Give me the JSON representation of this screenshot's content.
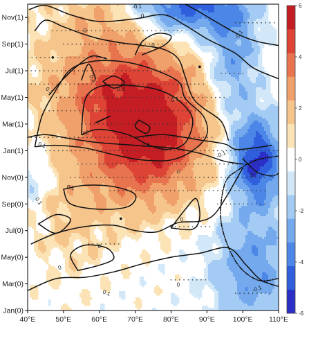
{
  "chart_data": {
    "type": "heatmap",
    "title": "",
    "xlabel": "",
    "ylabel": "",
    "x": {
      "range": [
        40,
        110
      ],
      "unit": "degrees east longitude",
      "ticks": [
        40,
        50,
        60,
        70,
        80,
        90,
        100,
        110
      ],
      "tick_labels": [
        "40°E",
        "50°E",
        "60°E",
        "70°E",
        "80°E",
        "90°E",
        "100°E",
        "110°E"
      ]
    },
    "y": {
      "range": [
        0,
        23
      ],
      "unit": "months from Jan(0) to Dec(1)",
      "ticks": [
        0,
        2,
        4,
        6,
        8,
        10,
        12,
        14,
        16,
        18,
        20,
        22
      ],
      "tick_labels": [
        "Jan(0)",
        "Mar(0)",
        "May(0)",
        "Jul(0)",
        "Sep(0)",
        "Nov(0)",
        "Jan(1)",
        "Mar(1)",
        "May(1)",
        "Jul(1)",
        "Sep(1)",
        "Nov(1)"
      ]
    },
    "colorbar": {
      "min": -6,
      "max": 6,
      "tick_values": [
        -6,
        -4,
        -2,
        0,
        2,
        4,
        6
      ],
      "tick_labels": [
        "-6",
        "-4",
        "-2",
        "0",
        "2",
        "4",
        "6"
      ],
      "levels": [
        -6,
        -5,
        -4,
        -3,
        -2,
        -1,
        -0.5,
        0.5,
        1,
        2,
        3,
        4,
        5,
        6
      ],
      "colors": [
        "#2b2fc6",
        "#2f5fdc",
        "#4c86e6",
        "#74a9ee",
        "#a3cbf3",
        "#d2e8f8",
        "#ffffff",
        "#fbe3b6",
        "#f6c58c",
        "#f0a06a",
        "#e8744f",
        "#dd4436",
        "#c41e24"
      ]
    },
    "field_centers": [
      {
        "name": "warm",
        "x": 72,
        "y": 14.5,
        "sx": 13,
        "sy": 3.4,
        "amp": 5.6
      },
      {
        "name": "warm",
        "x": 76,
        "y": 12.8,
        "sx": 6,
        "sy": 1.6,
        "amp": 1.2
      },
      {
        "name": "warm",
        "x": 58,
        "y": 18,
        "sx": 14,
        "sy": 3.5,
        "amp": 1.4
      },
      {
        "name": "warm",
        "x": 72,
        "y": 9.5,
        "sx": 12,
        "sy": 2.2,
        "amp": 1.3
      },
      {
        "name": "warm",
        "x": 52,
        "y": 6.5,
        "sx": 8,
        "sy": 3,
        "amp": 1.0
      },
      {
        "name": "warm",
        "x": 62,
        "y": 22.3,
        "sx": 9,
        "sy": 1.5,
        "amp": 1.2
      },
      {
        "name": "cool",
        "x": 104,
        "y": 11.3,
        "sx": 5,
        "sy": 2.3,
        "amp": -5.4
      },
      {
        "name": "cool",
        "x": 84,
        "y": 22.8,
        "sx": 11,
        "sy": 1.5,
        "amp": -4.4
      },
      {
        "name": "cool",
        "x": 97,
        "y": 18.7,
        "sx": 5,
        "sy": 3,
        "amp": -2.8
      },
      {
        "name": "cool",
        "x": 103,
        "y": 3,
        "sx": 8,
        "sy": 3,
        "amp": -2.8
      },
      {
        "name": "cool",
        "x": 42,
        "y": 10,
        "sx": 3,
        "sy": 1.5,
        "amp": -1.2
      }
    ],
    "contours": [
      {
        "level": 0,
        "style": "solid",
        "points": [
          [
            40.5,
            22.6
          ],
          [
            45,
            22.9
          ],
          [
            52,
            22.2
          ],
          [
            60,
            21.7
          ],
          [
            70,
            21.9
          ],
          [
            78,
            22.2
          ],
          [
            84,
            21.4
          ],
          [
            90,
            20.4
          ],
          [
            98,
            19.3
          ],
          [
            103,
            18.2
          ],
          [
            110,
            17.4
          ]
        ]
      },
      {
        "level": 0,
        "style": "solid",
        "points": [
          [
            42,
            21
          ],
          [
            45,
            21.8
          ],
          [
            50,
            21.3
          ],
          [
            55,
            20.8
          ],
          [
            60,
            20.4
          ],
          [
            66,
            20.1
          ],
          [
            72,
            19.9
          ],
          [
            78,
            19.6
          ],
          [
            82,
            18.9
          ],
          [
            84,
            17.5
          ],
          [
            86,
            16
          ],
          [
            89,
            15.2
          ],
          [
            94,
            14.2
          ],
          [
            96,
            12.8
          ]
        ]
      },
      {
        "level": 0,
        "style": "solid",
        "points": [
          [
            40,
            13
          ],
          [
            45,
            13.2
          ],
          [
            52,
            12.9
          ],
          [
            60,
            12.6
          ],
          [
            70,
            12.4
          ],
          [
            80,
            12.2
          ],
          [
            88,
            11.8
          ],
          [
            95,
            11.2
          ],
          [
            100,
            11
          ]
        ]
      },
      {
        "level": 0,
        "style": "solid",
        "points": [
          [
            40,
            1.5
          ],
          [
            48,
            2.4
          ],
          [
            56,
            2.5
          ],
          [
            64,
            2.9
          ],
          [
            72,
            3.5
          ],
          [
            80,
            4
          ],
          [
            88,
            4.3
          ],
          [
            96,
            4.7
          ],
          [
            101,
            3.4
          ],
          [
            105,
            2.3
          ],
          [
            110,
            1.8
          ]
        ]
      },
      {
        "level": 0,
        "style": "solid",
        "points": [
          [
            41,
            5
          ],
          [
            48,
            5.8
          ],
          [
            56,
            6.3
          ],
          [
            64,
            6.4
          ],
          [
            70,
            6
          ],
          [
            76,
            5.9
          ],
          [
            82,
            6.6
          ],
          [
            88,
            6.7
          ],
          [
            92,
            7.2
          ],
          [
            96,
            8.8
          ],
          [
            100,
            10.7
          ]
        ]
      },
      {
        "level": 0,
        "style": "solid",
        "points": [
          [
            54,
            3
          ],
          [
            52,
            4.2
          ],
          [
            56,
            4.9
          ],
          [
            62,
            4.7
          ],
          [
            64,
            3.9
          ],
          [
            60,
            3.4
          ],
          [
            54,
            3
          ]
        ]
      },
      {
        "level": -0.1,
        "style": "dashed",
        "points": [
          [
            110,
            2.4
          ],
          [
            104,
            2.3
          ],
          [
            98,
            3.7
          ],
          [
            94,
            6.6
          ],
          [
            95,
            9.5
          ],
          [
            99,
            10.6
          ],
          [
            104,
            11.3
          ],
          [
            110,
            11.6
          ]
        ]
      },
      {
        "level": -0.1,
        "style": "solid",
        "points": [
          [
            84,
            23
          ],
          [
            88,
            22.4
          ],
          [
            93,
            21.6
          ],
          [
            99,
            20.7
          ],
          [
            104,
            20.2
          ],
          [
            110,
            19.9
          ]
        ]
      },
      {
        "level": -0.2,
        "style": "dashed",
        "points": [
          [
            100,
            11.4
          ],
          [
            104,
            10.4
          ],
          [
            108,
            10.1
          ],
          [
            110,
            10.3
          ]
        ]
      },
      {
        "level": 0.1,
        "style": "solid",
        "points": [
          [
            42,
            12.3
          ],
          [
            48,
            12.4
          ],
          [
            56,
            12.2
          ],
          [
            64,
            11.7
          ],
          [
            72,
            11.3
          ],
          [
            80,
            11.3
          ],
          [
            86,
            12
          ],
          [
            90,
            13.2
          ],
          [
            89,
            14.6
          ],
          [
            84,
            15.9
          ],
          [
            82,
            17.2
          ],
          [
            74,
            18.2
          ],
          [
            66,
            18.7
          ],
          [
            58,
            18.7
          ],
          [
            52,
            18.1
          ],
          [
            48,
            16.6
          ],
          [
            44,
            14.6
          ],
          [
            42,
            12.3
          ]
        ]
      },
      {
        "level": 0.1,
        "style": "solid",
        "points": [
          [
            46,
            16.2
          ],
          [
            50,
            17.4
          ],
          [
            54,
            18.4
          ],
          [
            58,
            19.1
          ],
          [
            62,
            18.9
          ]
        ]
      },
      {
        "level": 0.1,
        "style": "solid",
        "points": [
          [
            70,
            19.2
          ],
          [
            72,
            20.2
          ],
          [
            76,
            20.8
          ],
          [
            80,
            20.6
          ],
          [
            78,
            19.9
          ],
          [
            72,
            19.2
          ]
        ]
      },
      {
        "level": 0.1,
        "style": "solid",
        "points": [
          [
            50,
            9.1
          ],
          [
            56,
            9.4
          ],
          [
            64,
            9.3
          ],
          [
            70,
            8.7
          ],
          [
            68,
            7.8
          ],
          [
            60,
            7.6
          ],
          [
            52,
            8
          ],
          [
            50,
            9.1
          ]
        ]
      },
      {
        "level": 0.1,
        "style": "solid",
        "points": [
          [
            43,
            6.5
          ],
          [
            48,
            7.2
          ],
          [
            52,
            6.8
          ],
          [
            48,
            5.8
          ],
          [
            43,
            6.5
          ]
        ]
      },
      {
        "level": 0.1,
        "style": "solid",
        "points": [
          [
            80,
            6.2
          ],
          [
            84,
            7.6
          ],
          [
            87,
            8.4
          ],
          [
            88,
            7
          ],
          [
            86,
            6.1
          ],
          [
            80,
            6.2
          ]
        ]
      },
      {
        "level": 0.1,
        "style": "solid",
        "points": [
          [
            70,
            13
          ],
          [
            78,
            13.2
          ],
          [
            88,
            12.8
          ],
          [
            95,
            12.5
          ],
          [
            98,
            12.1
          ],
          [
            103,
            12.2
          ],
          [
            108,
            12.4
          ]
        ]
      },
      {
        "level": 0.2,
        "style": "solid",
        "points": [
          [
            55,
            13.2
          ],
          [
            60,
            13.6
          ],
          [
            68,
            13.2
          ],
          [
            74,
            12.4
          ],
          [
            79,
            12.1
          ],
          [
            84,
            12.6
          ],
          [
            86,
            14.4
          ],
          [
            82,
            15.8
          ],
          [
            76,
            16.6
          ],
          [
            68,
            16.9
          ],
          [
            60,
            16.8
          ],
          [
            56,
            15.8
          ],
          [
            55,
            13.2
          ]
        ]
      },
      {
        "level": 0.2,
        "style": "solid",
        "points": [
          [
            71,
            14.3
          ],
          [
            74,
            13.8
          ],
          [
            73,
            13.3
          ],
          [
            70,
            13.8
          ],
          [
            71,
            14.3
          ]
        ]
      },
      {
        "level": 0.2,
        "style": "solid",
        "points": [
          [
            59,
            14.1
          ],
          [
            63,
            14.6
          ],
          [
            60,
            14.2
          ],
          [
            59,
            14.1
          ]
        ]
      },
      {
        "level": 0.3,
        "style": "solid",
        "points": [
          [
            61,
            17.2
          ],
          [
            64,
            17.6
          ],
          [
            67,
            17.1
          ],
          [
            64,
            16.7
          ],
          [
            61,
            17.2
          ]
        ]
      },
      {
        "level": 0.3,
        "style": "solid",
        "points": [
          [
            55,
            17.3
          ],
          [
            57,
            18.5
          ],
          [
            59,
            17.4
          ]
        ]
      }
    ],
    "contour_labels": [
      {
        "text": "-0.1",
        "x": 70.5,
        "y": 22.8,
        "angle": -4
      },
      {
        "text": "0",
        "x": 75,
        "y": 19.9,
        "angle": -5
      },
      {
        "text": "0.1",
        "x": 52,
        "y": 9.2,
        "angle": 15
      },
      {
        "text": "-0.1",
        "x": 94,
        "y": 11.7,
        "angle": -25
      },
      {
        "text": "0.1",
        "x": 46,
        "y": 16.5,
        "angle": 40
      },
      {
        "text": "0.2",
        "x": 56,
        "y": 13.3,
        "angle": -10
      },
      {
        "text": "0.3",
        "x": 58,
        "y": 17.4,
        "angle": 60
      },
      {
        "text": "0.3",
        "x": 66,
        "y": 16.6,
        "angle": 0
      },
      {
        "text": "0.2",
        "x": 81,
        "y": 15.8,
        "angle": -10
      },
      {
        "text": "0.2",
        "x": 73,
        "y": 12.4,
        "angle": 0
      },
      {
        "text": "-0.1",
        "x": 99,
        "y": 20.7,
        "angle": -50
      },
      {
        "text": "-0.2",
        "x": 103,
        "y": 10.2,
        "angle": -35
      },
      {
        "text": "0.1",
        "x": 44,
        "y": 12.4,
        "angle": 20
      },
      {
        "text": "0.1",
        "x": 43,
        "y": 8.2,
        "angle": 55
      },
      {
        "text": "0",
        "x": 60,
        "y": 4.8,
        "angle": 0
      },
      {
        "text": "0",
        "x": 83,
        "y": 6.8,
        "angle": 0
      },
      {
        "text": "0",
        "x": 56,
        "y": 21,
        "angle": 0
      },
      {
        "text": "0",
        "x": 82,
        "y": 1.9,
        "angle": 0
      },
      {
        "text": "0.1",
        "x": 62,
        "y": 1.3,
        "angle": 20
      },
      {
        "text": "0",
        "x": 82,
        "y": 10.4,
        "angle": 40
      },
      {
        "text": "0",
        "x": 49,
        "y": 3.2,
        "angle": -25
      },
      {
        "text": "0",
        "x": 72,
        "y": 22.1,
        "angle": 0
      },
      {
        "text": "-0.1",
        "x": 104,
        "y": 1.6,
        "angle": -20
      }
    ],
    "significance_rows": [
      {
        "y": 21,
        "x0": 47,
        "x1": 84
      },
      {
        "y": 20,
        "x0": 50,
        "x1": 78
      },
      {
        "y": 19,
        "x0": 40,
        "x1": 62
      },
      {
        "y": 18,
        "x0": 41,
        "x1": 80
      },
      {
        "y": 17,
        "x0": 41,
        "x1": 90
      },
      {
        "y": 16,
        "x0": 48,
        "x1": 96
      },
      {
        "y": 15,
        "x0": 46,
        "x1": 88
      },
      {
        "y": 14,
        "x0": 55,
        "x1": 87
      },
      {
        "y": 13,
        "x0": 41,
        "x1": 92
      },
      {
        "y": 12,
        "x0": 45,
        "x1": 110
      },
      {
        "y": 11,
        "x0": 54,
        "x1": 105
      },
      {
        "y": 10,
        "x0": 52,
        "x1": 107
      },
      {
        "y": 9,
        "x0": 63,
        "x1": 107
      },
      {
        "y": 8,
        "x0": 93,
        "x1": 107
      },
      {
        "y": 6.3,
        "x0": 80,
        "x1": 92
      },
      {
        "y": 5,
        "x0": 57,
        "x1": 66
      },
      {
        "y": 2.3,
        "x0": 80,
        "x1": 90
      },
      {
        "y": 1.3,
        "x0": 98,
        "x1": 108
      },
      {
        "y": 17.8,
        "x0": 94,
        "x1": 101
      },
      {
        "y": 21.6,
        "x0": 98,
        "x1": 110
      }
    ],
    "markers": [
      {
        "x": 47,
        "y": 19
      },
      {
        "x": 88,
        "y": 18.3
      },
      {
        "x": 66,
        "y": 6.9
      }
    ]
  }
}
